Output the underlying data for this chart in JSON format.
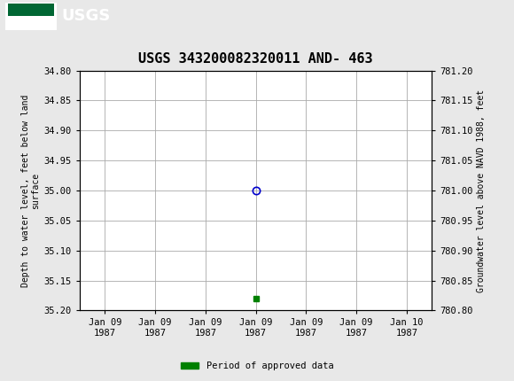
{
  "title": "USGS 343200082320011 AND- 463",
  "ylabel_left": "Depth to water level, feet below land\nsurface",
  "ylabel_right": "Groundwater level above NAVD 1988, feet",
  "ylim_left": [
    34.8,
    35.2
  ],
  "ylim_right": [
    781.2,
    780.8
  ],
  "yticks_left": [
    34.8,
    34.85,
    34.9,
    34.95,
    35.0,
    35.05,
    35.1,
    35.15,
    35.2
  ],
  "yticks_right": [
    781.2,
    781.15,
    781.1,
    781.05,
    781.0,
    780.95,
    780.9,
    780.85,
    780.8
  ],
  "data_point_x": 3,
  "data_point_y": 35.0,
  "data_point2_x": 3,
  "data_point2_y": 35.18,
  "x_tick_labels": [
    "Jan 09\n1987",
    "Jan 09\n1987",
    "Jan 09\n1987",
    "Jan 09\n1987",
    "Jan 09\n1987",
    "Jan 09\n1987",
    "Jan 10\n1987"
  ],
  "x_tick_positions": [
    0,
    1,
    2,
    3,
    4,
    5,
    6
  ],
  "xlim": [
    -0.5,
    6.5
  ],
  "bg_color": "#e8e8e8",
  "plot_bg_color": "#ffffff",
  "grid_color": "#aaaaaa",
  "header_color": "#006633",
  "open_circle_color": "#0000cc",
  "green_square_color": "#008000",
  "title_fontsize": 11,
  "axis_label_fontsize": 7,
  "tick_fontsize": 7.5,
  "legend_label": "Period of approved data",
  "font_family": "monospace"
}
